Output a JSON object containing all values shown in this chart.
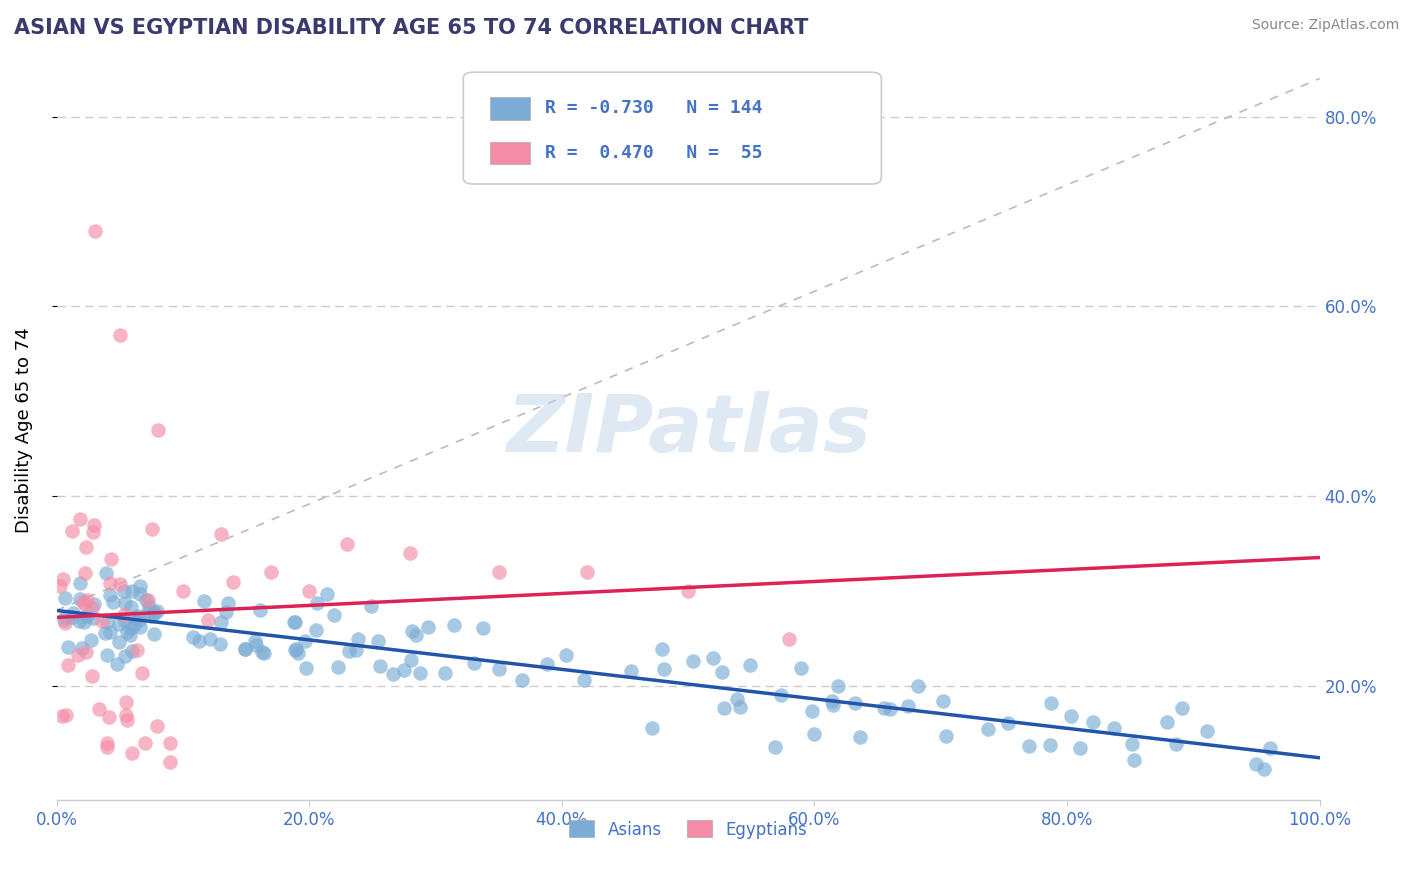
{
  "title": "ASIAN VS EGYPTIAN DISABILITY AGE 65 TO 74 CORRELATION CHART",
  "source": "Source: ZipAtlas.com",
  "ylabel": "Disability Age 65 to 74",
  "xlim": [
    0.0,
    1.0
  ],
  "ylim": [
    0.08,
    0.86
  ],
  "xticks": [
    0.0,
    0.2,
    0.4,
    0.6,
    0.8,
    1.0
  ],
  "xticklabels": [
    "0.0%",
    "20.0%",
    "40.0%",
    "60.0%",
    "80.0%",
    "100.0%"
  ],
  "yticks_right": [
    0.2,
    0.4,
    0.6,
    0.8
  ],
  "yticklabels_right": [
    "20.0%",
    "40.0%",
    "60.0%",
    "80.0%"
  ],
  "title_color": "#3a3a6e",
  "axis_color": "#4472c4",
  "grid_color": "#cccccc",
  "asian_color": "#7aacd6",
  "egyptian_color": "#f48ca7",
  "asian_line_color": "#2255aa",
  "egyptian_line_color": "#dd2255",
  "asian_R": -0.73,
  "asian_N": 144,
  "egyptian_R": 0.47,
  "egyptian_N": 55,
  "asian_label": "Asians",
  "egyptian_label": "Egyptians",
  "figsize": [
    14.06,
    8.92
  ],
  "dpi": 100
}
